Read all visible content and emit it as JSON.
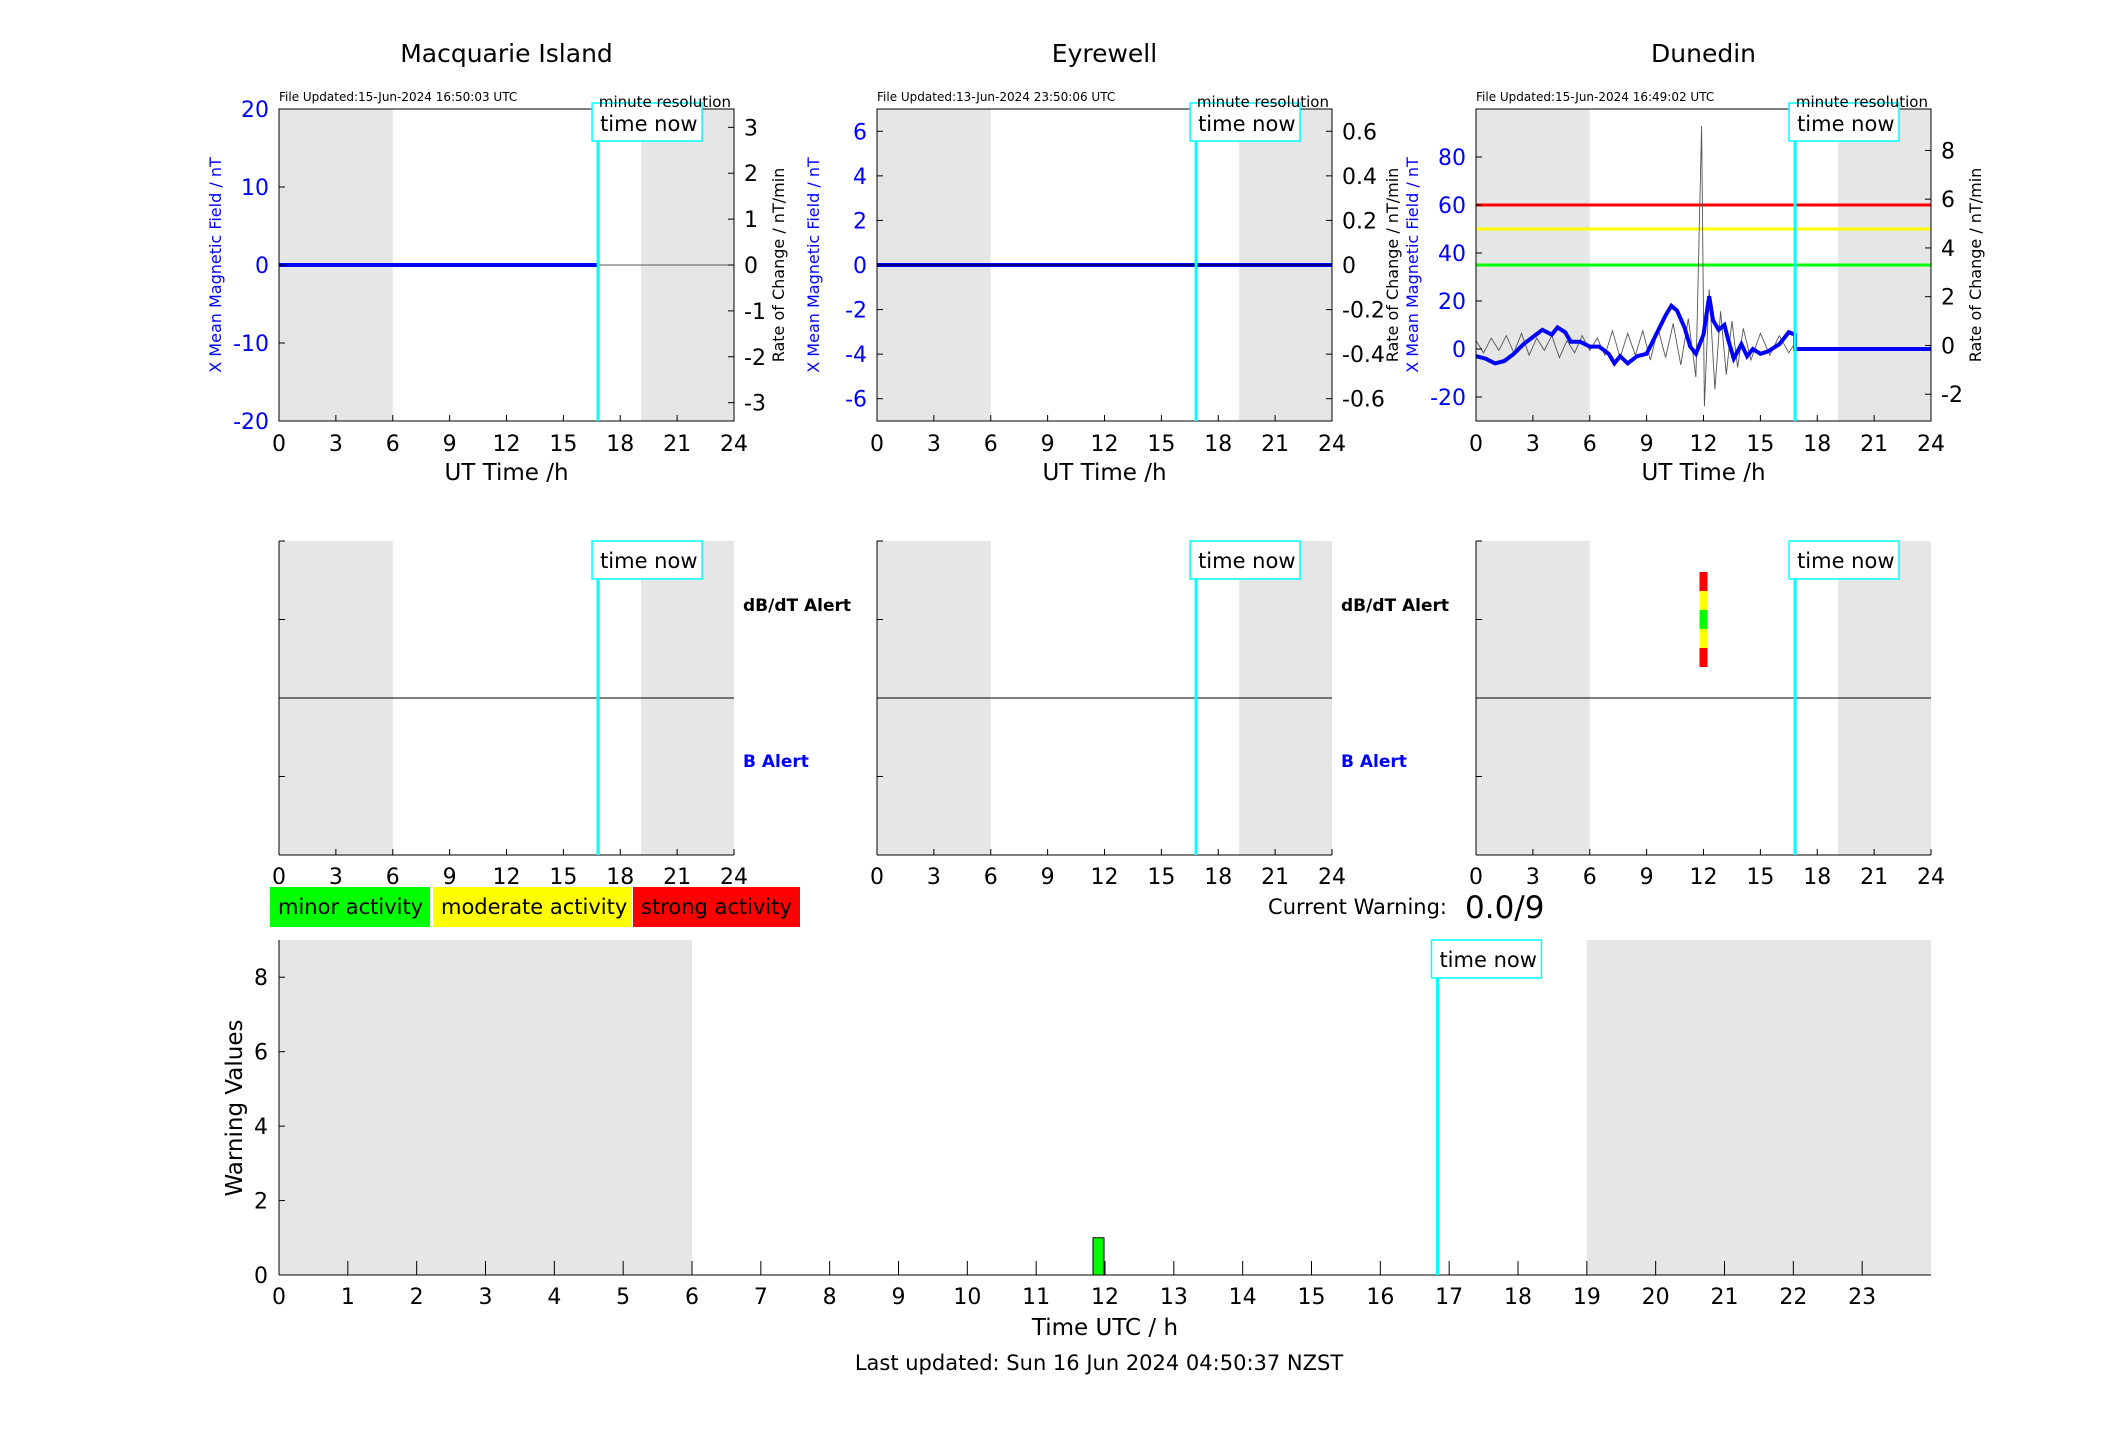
{
  "panels": [
    {
      "id": "macquarie",
      "title": "Macquarie Island",
      "file_updated": "File Updated:15-Jun-2024 16:50:03 UTC",
      "resolution": "minute resolution",
      "left_ylabel": "X Mean Magnetic Field / nT",
      "right_ylabel": "Rate of Change / nT/min",
      "left_ylim": [
        -20,
        20
      ],
      "left_ticks": [
        "-20",
        "-10",
        "0",
        "10",
        "20"
      ],
      "left_tick_values": [
        -20,
        -10,
        0,
        10,
        20
      ],
      "right_ylim": [
        -3.4,
        3.4
      ],
      "right_ticks": [
        "-3",
        "-2",
        "-1",
        "0",
        "1",
        "2",
        "3"
      ],
      "right_tick_values": [
        -3,
        -2,
        -1,
        0,
        1,
        2,
        3
      ],
      "x_ticks": [
        "0",
        "3",
        "6",
        "9",
        "12",
        "15",
        "18",
        "21",
        "24"
      ],
      "xlabel": "UT Time /h",
      "time_now_label": "time now",
      "time_now_hour": 16.83,
      "night_shading": [
        [
          0,
          6
        ],
        [
          19.1,
          24
        ]
      ],
      "field_series": [
        [
          0,
          0
        ],
        [
          16.83,
          0
        ]
      ],
      "rate_series": [
        [
          0,
          0
        ],
        [
          16.83,
          0
        ],
        [
          24,
          0
        ]
      ],
      "thresholds": []
    },
    {
      "id": "eyrewell",
      "title": "Eyrewell",
      "file_updated": "File Updated:13-Jun-2024 23:50:06 UTC",
      "resolution": "minute resolution",
      "left_ylabel": "X Mean Magnetic Field / nT",
      "right_ylabel": "",
      "left_ylim": [
        -7,
        7
      ],
      "left_ticks": [
        "-6",
        "-4",
        "-2",
        "0",
        "2",
        "4",
        "6"
      ],
      "left_tick_values": [
        -6,
        -4,
        -2,
        0,
        2,
        4,
        6
      ],
      "right_ylim": [
        -0.7,
        0.7
      ],
      "right_ticks": [
        "-0.6",
        "-0.4",
        "-0.2",
        "0",
        "0.2",
        "0.4",
        "0.6"
      ],
      "right_tick_values": [
        -0.6,
        -0.4,
        -0.2,
        0,
        0.2,
        0.4,
        0.6
      ],
      "x_ticks": [
        "0",
        "3",
        "6",
        "9",
        "12",
        "15",
        "18",
        "21",
        "24"
      ],
      "xlabel": "UT Time /h",
      "time_now_label": "time now",
      "time_now_hour": 16.83,
      "night_shading": [
        [
          0,
          6
        ],
        [
          19.1,
          24
        ]
      ],
      "field_series": [
        [
          0,
          0
        ],
        [
          24,
          0
        ]
      ],
      "rate_series": [
        [
          0,
          0
        ],
        [
          24,
          0
        ]
      ],
      "thresholds": []
    },
    {
      "id": "dunedin",
      "title": "Dunedin",
      "file_updated": "File Updated:15-Jun-2024 16:49:02 UTC",
      "resolution": "minute resolution",
      "left_ylabel": "X Mean Magnetic Field / nT",
      "right_ylabel": "Rate of Change / nT/min",
      "extra_ylabel": "Rate of Change / nT/min",
      "left_ylim": [
        -30,
        100
      ],
      "left_ticks": [
        "-20",
        "0",
        "20",
        "40",
        "60",
        "80"
      ],
      "left_tick_values": [
        -20,
        0,
        20,
        40,
        60,
        80
      ],
      "right_ylim": [
        -3.1,
        9.7
      ],
      "right_ticks": [
        "-2",
        "0",
        "2",
        "4",
        "6",
        "8"
      ],
      "right_tick_values": [
        -2,
        0,
        2,
        4,
        6,
        8
      ],
      "x_ticks": [
        "0",
        "3",
        "6",
        "9",
        "12",
        "15",
        "18",
        "21",
        "24"
      ],
      "xlabel": "UT Time /h",
      "time_now_label": "time now",
      "time_now_hour": 16.83,
      "night_shading": [
        [
          0,
          6
        ],
        [
          19.1,
          24
        ]
      ],
      "field_series": [
        [
          0,
          -3
        ],
        [
          0.5,
          -4
        ],
        [
          1,
          -6
        ],
        [
          1.5,
          -5
        ],
        [
          2,
          -2
        ],
        [
          2.5,
          2
        ],
        [
          3,
          5
        ],
        [
          3.5,
          8
        ],
        [
          4,
          6
        ],
        [
          4.3,
          9
        ],
        [
          4.7,
          7
        ],
        [
          5,
          3
        ],
        [
          5.5,
          3
        ],
        [
          6,
          1
        ],
        [
          6.5,
          1
        ],
        [
          7,
          -2
        ],
        [
          7.3,
          -6
        ],
        [
          7.6,
          -3
        ],
        [
          8,
          -6
        ],
        [
          8.5,
          -3
        ],
        [
          9,
          -2
        ],
        [
          9.5,
          6
        ],
        [
          10,
          14
        ],
        [
          10.3,
          18
        ],
        [
          10.6,
          16
        ],
        [
          11,
          9
        ],
        [
          11.3,
          1
        ],
        [
          11.6,
          -2
        ],
        [
          12,
          6
        ],
        [
          12.3,
          22
        ],
        [
          12.5,
          12
        ],
        [
          12.8,
          8
        ],
        [
          13.1,
          10
        ],
        [
          13.3,
          4
        ],
        [
          13.6,
          -4
        ],
        [
          14,
          2
        ],
        [
          14.3,
          -3
        ],
        [
          14.6,
          0
        ],
        [
          15,
          -2
        ],
        [
          15.4,
          -1
        ],
        [
          16,
          2
        ],
        [
          16.5,
          7
        ],
        [
          16.83,
          6
        ],
        [
          16.83,
          0
        ],
        [
          24,
          0
        ]
      ],
      "rate_series": [
        [
          0,
          0.2
        ],
        [
          0.4,
          -0.3
        ],
        [
          0.8,
          0.3
        ],
        [
          1.2,
          -0.2
        ],
        [
          1.6,
          0.4
        ],
        [
          2,
          -0.3
        ],
        [
          2.4,
          0.5
        ],
        [
          2.8,
          -0.4
        ],
        [
          3.2,
          0.3
        ],
        [
          3.6,
          -0.2
        ],
        [
          4,
          0.4
        ],
        [
          4.4,
          -0.5
        ],
        [
          4.8,
          0.2
        ],
        [
          5.2,
          -0.3
        ],
        [
          5.6,
          0.4
        ],
        [
          6,
          -0.2
        ],
        [
          6.4,
          0.3
        ],
        [
          6.8,
          -0.4
        ],
        [
          7.2,
          0.6
        ],
        [
          7.6,
          -0.5
        ],
        [
          8,
          0.5
        ],
        [
          8.4,
          -0.4
        ],
        [
          8.8,
          0.6
        ],
        [
          9.2,
          -0.6
        ],
        [
          9.6,
          0.7
        ],
        [
          10,
          -0.5
        ],
        [
          10.4,
          0.9
        ],
        [
          10.8,
          -0.8
        ],
        [
          11.2,
          1.1
        ],
        [
          11.6,
          -1.3
        ],
        [
          11.9,
          9
        ],
        [
          12.05,
          -2.5
        ],
        [
          12.3,
          2.3
        ],
        [
          12.6,
          -1.8
        ],
        [
          12.9,
          1.4
        ],
        [
          13.2,
          -1.2
        ],
        [
          13.5,
          1
        ],
        [
          13.8,
          -0.9
        ],
        [
          14.1,
          0.7
        ],
        [
          14.5,
          -0.6
        ],
        [
          15,
          0.5
        ],
        [
          15.5,
          -0.4
        ],
        [
          16,
          0.4
        ],
        [
          16.5,
          -0.3
        ],
        [
          16.83,
          0.1
        ]
      ],
      "thresholds": [
        {
          "value": 60,
          "color": "#ff0000"
        },
        {
          "value": 50,
          "color": "#ffff00"
        },
        {
          "value": 35,
          "color": "#00ff00"
        }
      ]
    }
  ],
  "alert_panels": [
    {
      "id": "macquarie-alert",
      "dbdt_label": "dB/dT Alert",
      "b_label": "B Alert",
      "time_now_label": "time now",
      "time_now_hour": 16.83,
      "night_shading": [
        [
          0,
          6
        ],
        [
          19.1,
          24
        ]
      ],
      "x_ticks": [
        "0",
        "3",
        "6",
        "9",
        "12",
        "15",
        "18",
        "21",
        "24"
      ],
      "alert_bar": null
    },
    {
      "id": "eyrewell-alert",
      "dbdt_label": "dB/dT Alert",
      "b_label": "B Alert",
      "time_now_label": "time now",
      "time_now_hour": 16.83,
      "night_shading": [
        [
          0,
          6
        ],
        [
          19.1,
          24
        ]
      ],
      "x_ticks": [
        "0",
        "3",
        "6",
        "9",
        "12",
        "15",
        "18",
        "21",
        "24"
      ],
      "alert_bar": null
    },
    {
      "id": "dunedin-alert",
      "dbdt_label": "",
      "b_label": "",
      "time_now_label": "time now",
      "time_now_hour": 16.83,
      "night_shading": [
        [
          0,
          6
        ],
        [
          19.1,
          24
        ]
      ],
      "x_ticks": [
        "0",
        "3",
        "6",
        "9",
        "12",
        "15",
        "18",
        "21",
        "24"
      ],
      "alert_bar": {
        "hour": 12,
        "colors": [
          "#ff0000",
          "#ffff00",
          "#00ff00",
          "#ffff00",
          "#ff0000"
        ]
      }
    }
  ],
  "legend": [
    {
      "label": "minor activity",
      "color": "#00ff00"
    },
    {
      "label": "moderate activity",
      "color": "#ffff00"
    },
    {
      "label": "strong activity",
      "color": "#ff0000"
    }
  ],
  "current_warning": {
    "label": "Current Warning:",
    "value": "0.0/9"
  },
  "warning_chart": {
    "ylabel": "Warning Values",
    "xlabel": "Time UTC / h",
    "ylim": [
      0,
      9
    ],
    "y_ticks": [
      "0",
      "2",
      "4",
      "6",
      "8"
    ],
    "y_tick_values": [
      0,
      2,
      4,
      6,
      8
    ],
    "xlim": [
      0,
      24
    ],
    "x_ticks": [
      "0",
      "1",
      "2",
      "3",
      "4",
      "5",
      "6",
      "7",
      "8",
      "9",
      "10",
      "11",
      "12",
      "13",
      "14",
      "15",
      "16",
      "17",
      "18",
      "19",
      "20",
      "21",
      "22",
      "23"
    ],
    "time_now_label": "time now",
    "time_now_hour": 16.83,
    "night_shading": [
      [
        0,
        6
      ],
      [
        19,
        24
      ]
    ],
    "bars": [
      {
        "hour": 12,
        "value": 1,
        "color": "#00ff00"
      }
    ]
  },
  "chart_data": [
    {
      "type": "line",
      "title": "Macquarie Island",
      "xlabel": "UT Time /h",
      "ylabel": "X Mean Magnetic Field / nT",
      "y2label": "Rate of Change / nT/min",
      "xlim": [
        0,
        24
      ],
      "ylim": [
        -20,
        20
      ],
      "y2lim": [
        -3.4,
        3.4
      ]
    },
    {
      "type": "line",
      "title": "Eyrewell",
      "xlabel": "UT Time /h",
      "ylabel": "X Mean Magnetic Field / nT",
      "xlim": [
        0,
        24
      ],
      "ylim": [
        -7,
        7
      ],
      "y2lim": [
        -0.7,
        0.7
      ]
    },
    {
      "type": "line",
      "title": "Dunedin",
      "xlabel": "UT Time /h",
      "ylabel": "X Mean Magnetic Field / nT",
      "y2label": "Rate of Change / nT/min",
      "xlim": [
        0,
        24
      ],
      "ylim": [
        -30,
        100
      ],
      "y2lim": [
        -3.1,
        9.7
      ]
    },
    {
      "type": "bar",
      "title": "",
      "xlabel": "Time UTC / h",
      "ylabel": "Warning Values",
      "xlim": [
        0,
        24
      ],
      "ylim": [
        0,
        9
      ],
      "x": [
        12
      ],
      "values": [
        1
      ]
    }
  ],
  "footer": {
    "last_updated": "Last updated: Sun 16 Jun 2024 04:50:37 NZST"
  }
}
